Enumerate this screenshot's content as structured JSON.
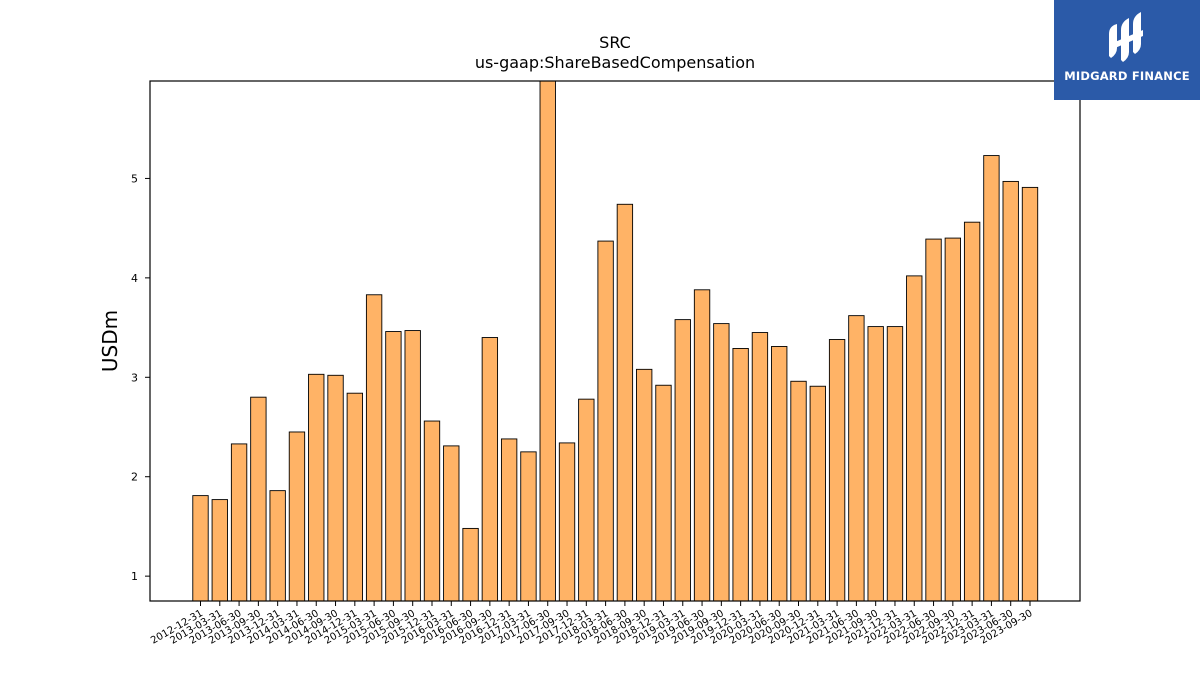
{
  "logo": {
    "text": "MIDGARD FINANCE"
  },
  "chart_data": {
    "type": "bar",
    "title": "SRC",
    "subtitle": "us-gaap:ShareBasedCompensation",
    "xlabel": "",
    "ylabel": "USDm",
    "ylim": [
      0.75,
      5.98
    ],
    "yticks": [
      1,
      2,
      3,
      4,
      5
    ],
    "grid": false,
    "bar_color": "#ffb366",
    "bar_edge_color": "#000000",
    "categories": [
      "2012-12-31",
      "2013-03-31",
      "2013-06-30",
      "2013-09-30",
      "2013-12-31",
      "2014-03-31",
      "2014-06-30",
      "2014-09-30",
      "2014-12-31",
      "2015-03-31",
      "2015-06-30",
      "2015-09-30",
      "2015-12-31",
      "2016-03-31",
      "2016-06-30",
      "2016-09-30",
      "2016-12-31",
      "2017-03-31",
      "2017-06-30",
      "2017-09-30",
      "2017-12-31",
      "2018-03-31",
      "2018-06-30",
      "2018-09-30",
      "2018-12-31",
      "2019-03-31",
      "2019-06-30",
      "2019-09-30",
      "2019-12-31",
      "2020-03-31",
      "2020-06-30",
      "2020-09-30",
      "2020-12-31",
      "2021-03-31",
      "2021-06-30",
      "2021-09-30",
      "2021-12-31",
      "2022-03-31",
      "2022-06-30",
      "2022-09-30",
      "2022-12-31",
      "2023-03-31",
      "2023-06-30",
      "2023-09-30"
    ],
    "values": [
      1.81,
      1.77,
      2.33,
      2.8,
      1.86,
      2.45,
      3.03,
      3.02,
      2.84,
      3.83,
      3.46,
      3.47,
      2.56,
      2.31,
      1.48,
      3.4,
      2.38,
      2.25,
      6.0,
      2.34,
      2.78,
      4.37,
      4.74,
      3.08,
      2.92,
      3.58,
      3.88,
      3.54,
      3.29,
      3.45,
      3.31,
      2.96,
      2.91,
      3.38,
      3.62,
      3.51,
      3.51,
      4.02,
      4.39,
      4.4,
      4.56,
      5.23,
      4.97,
      4.91
    ]
  }
}
